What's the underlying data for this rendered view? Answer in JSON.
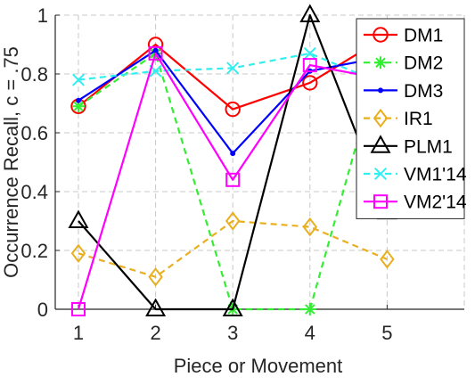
{
  "chart_data": {
    "type": "line",
    "xlabel": "Piece or Movement",
    "ylabel": "Occurrence Recall, c = .75",
    "x": [
      1,
      2,
      3,
      4,
      5
    ],
    "xlim": [
      0.7,
      6.0
    ],
    "ylim": [
      0,
      1
    ],
    "xticks": [
      "1",
      "2",
      "3",
      "4",
      "5"
    ],
    "yticks": [
      "0",
      "0.2",
      "0.4",
      "0.6",
      "0.8",
      "1"
    ],
    "grid": true,
    "legend_position": "top-right",
    "series": [
      {
        "name": "DM1",
        "values": [
          0.69,
          0.9,
          0.68,
          0.77,
          0.93
        ],
        "color": "#ff0000",
        "dash": "solid",
        "marker": "circle"
      },
      {
        "name": "DM2",
        "values": [
          0.69,
          0.87,
          0.0,
          0.0,
          0.93
        ],
        "color": "#33ee33",
        "dash": "dashed",
        "marker": "asterisk"
      },
      {
        "name": "DM3",
        "values": [
          0.71,
          0.88,
          0.53,
          0.81,
          0.86
        ],
        "color": "#0000ff",
        "dash": "solid",
        "marker": "point"
      },
      {
        "name": "IR1",
        "values": [
          0.19,
          0.11,
          0.3,
          0.28,
          0.17
        ],
        "color": "#e8b020",
        "dash": "dashed",
        "marker": "diamond"
      },
      {
        "name": "PLM1",
        "values": [
          0.3,
          0.0,
          0.0,
          1.0,
          0.33
        ],
        "color": "#000000",
        "dash": "solid",
        "marker": "triangle"
      },
      {
        "name": "VM1'14",
        "values": [
          0.78,
          0.81,
          0.82,
          0.87,
          0.76
        ],
        "color": "#33eeee",
        "dash": "dashed",
        "marker": "x"
      },
      {
        "name": "VM2'14",
        "values": [
          0.0,
          0.87,
          0.44,
          0.83,
          0.78
        ],
        "color": "#ff00ff",
        "dash": "solid",
        "marker": "square"
      }
    ]
  }
}
